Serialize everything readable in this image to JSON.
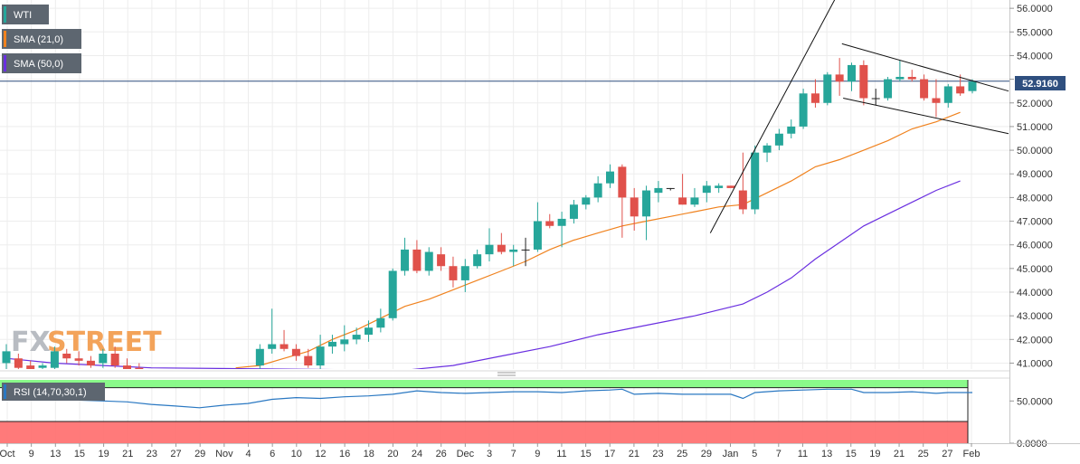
{
  "logo": {
    "part1": "FX",
    "part2": "STREET"
  },
  "colors": {
    "up": "#26a69a",
    "down": "#e0514b",
    "sma21": "#f0821e",
    "sma50": "#6a2fe0",
    "rsi": "#2a78c2",
    "rsi_overbought_zone": "#7dfa7d",
    "rsi_oversold_zone": "#ff6b6b",
    "price_line": "#2f4f7f"
  },
  "chart_data": [
    {
      "type": "candlestick",
      "legend": [
        {
          "label": "WTI",
          "color": "#26a69a"
        },
        {
          "label": "SMA (21,0)",
          "color": "#f0821e"
        },
        {
          "label": "SMA (50,0)",
          "color": "#6a2fe0"
        }
      ],
      "last_price_label": "52.9160",
      "last_price": 52.916,
      "ylim": [
        40.75,
        56.35
      ],
      "y_ticks": [
        "56.0000",
        "55.0000",
        "54.0000",
        "53.0000",
        "52.0000",
        "51.0000",
        "50.0000",
        "49.0000",
        "48.0000",
        "47.0000",
        "46.0000",
        "45.0000",
        "44.0000",
        "43.0000",
        "42.0000",
        "41.0000"
      ],
      "x_ticks": [
        "Oct",
        "9",
        "13",
        "15",
        "19",
        "21",
        "23",
        "27",
        "29",
        "Nov",
        "4",
        "6",
        "10",
        "12",
        "16",
        "18",
        "20",
        "24",
        "26",
        "Dec",
        "3",
        "7",
        "9",
        "11",
        "15",
        "17",
        "21",
        "23",
        "25",
        "29",
        "Jan",
        "5",
        "7",
        "11",
        "13",
        "15",
        "19",
        "21",
        "25",
        "27",
        "Feb"
      ],
      "candles": [
        {
          "i": 0,
          "o": 41.0,
          "h": 41.8,
          "l": 40.6,
          "c": 41.5
        },
        {
          "i": 1,
          "o": 41.2,
          "h": 41.4,
          "l": 40.5,
          "c": 40.8
        },
        {
          "i": 2,
          "o": 40.9,
          "h": 41.1,
          "l": 40.4,
          "c": 40.7
        },
        {
          "i": 3,
          "o": 40.8,
          "h": 41.0,
          "l": 40.5,
          "c": 40.9
        },
        {
          "i": 4,
          "o": 40.8,
          "h": 41.7,
          "l": 40.5,
          "c": 41.5
        },
        {
          "i": 5,
          "o": 41.4,
          "h": 41.6,
          "l": 41.0,
          "c": 41.2
        },
        {
          "i": 6,
          "o": 41.2,
          "h": 41.5,
          "l": 40.9,
          "c": 41.1
        },
        {
          "i": 7,
          "o": 41.1,
          "h": 41.3,
          "l": 40.8,
          "c": 40.9
        },
        {
          "i": 8,
          "o": 41.0,
          "h": 41.6,
          "l": 40.8,
          "c": 41.4
        },
        {
          "i": 9,
          "o": 41.4,
          "h": 41.7,
          "l": 40.8,
          "c": 40.9
        },
        {
          "i": 10,
          "o": 40.9,
          "h": 41.2,
          "l": 40.5,
          "c": 40.7
        },
        {
          "i": 11,
          "o": 40.8,
          "h": 41.0,
          "l": 40.4,
          "c": 40.6
        },
        {
          "i": 21,
          "o": 40.9,
          "h": 41.8,
          "l": 40.5,
          "c": 41.6
        },
        {
          "i": 22,
          "o": 41.6,
          "h": 43.3,
          "l": 41.4,
          "c": 41.8
        },
        {
          "i": 23,
          "o": 41.8,
          "h": 42.4,
          "l": 41.5,
          "c": 41.6
        },
        {
          "i": 24,
          "o": 41.6,
          "h": 41.8,
          "l": 41.1,
          "c": 41.3
        },
        {
          "i": 25,
          "o": 41.3,
          "h": 41.6,
          "l": 40.8,
          "c": 40.9
        },
        {
          "i": 26,
          "o": 40.9,
          "h": 42.2,
          "l": 40.7,
          "c": 41.7
        },
        {
          "i": 27,
          "o": 41.7,
          "h": 42.2,
          "l": 41.4,
          "c": 41.9
        },
        {
          "i": 28,
          "o": 41.8,
          "h": 42.6,
          "l": 41.5,
          "c": 42.0
        },
        {
          "i": 29,
          "o": 42.0,
          "h": 42.5,
          "l": 41.8,
          "c": 42.2
        },
        {
          "i": 30,
          "o": 42.2,
          "h": 42.8,
          "l": 41.9,
          "c": 42.5
        },
        {
          "i": 31,
          "o": 42.5,
          "h": 43.3,
          "l": 42.3,
          "c": 42.9
        },
        {
          "i": 32,
          "o": 42.9,
          "h": 45.0,
          "l": 42.8,
          "c": 44.9
        },
        {
          "i": 33,
          "o": 44.9,
          "h": 46.3,
          "l": 44.7,
          "c": 45.8
        },
        {
          "i": 34,
          "o": 45.8,
          "h": 46.2,
          "l": 44.8,
          "c": 44.9
        },
        {
          "i": 35,
          "o": 44.9,
          "h": 45.9,
          "l": 44.7,
          "c": 45.7
        },
        {
          "i": 36,
          "o": 45.6,
          "h": 45.9,
          "l": 44.9,
          "c": 45.1
        },
        {
          "i": 37,
          "o": 45.1,
          "h": 45.5,
          "l": 44.2,
          "c": 44.5
        },
        {
          "i": 38,
          "o": 44.5,
          "h": 45.4,
          "l": 44.0,
          "c": 45.1
        },
        {
          "i": 39,
          "o": 45.1,
          "h": 45.8,
          "l": 45.0,
          "c": 45.6
        },
        {
          "i": 40,
          "o": 45.6,
          "h": 46.7,
          "l": 45.3,
          "c": 46.0
        },
        {
          "i": 41,
          "o": 46.0,
          "h": 46.5,
          "l": 45.6,
          "c": 45.7
        },
        {
          "i": 42,
          "o": 45.7,
          "h": 46.0,
          "l": 45.1,
          "c": 45.8
        },
        {
          "i": 43,
          "o": 45.8,
          "h": 46.3,
          "l": 45.1,
          "c": 45.8
        },
        {
          "i": 44,
          "o": 45.8,
          "h": 47.8,
          "l": 45.7,
          "c": 47.0
        },
        {
          "i": 45,
          "o": 47.0,
          "h": 47.3,
          "l": 46.7,
          "c": 46.8
        },
        {
          "i": 46,
          "o": 46.8,
          "h": 47.4,
          "l": 45.9,
          "c": 47.1
        },
        {
          "i": 47,
          "o": 47.1,
          "h": 47.9,
          "l": 46.9,
          "c": 47.7
        },
        {
          "i": 48,
          "o": 47.7,
          "h": 48.1,
          "l": 47.5,
          "c": 48.0
        },
        {
          "i": 49,
          "o": 48.0,
          "h": 48.9,
          "l": 47.8,
          "c": 48.6
        },
        {
          "i": 50,
          "o": 48.6,
          "h": 49.4,
          "l": 48.4,
          "c": 49.1
        },
        {
          "i": 51,
          "o": 49.3,
          "h": 49.4,
          "l": 46.3,
          "c": 48.0
        },
        {
          "i": 52,
          "o": 48.0,
          "h": 48.4,
          "l": 46.6,
          "c": 47.2
        },
        {
          "i": 53,
          "o": 47.2,
          "h": 48.5,
          "l": 46.2,
          "c": 48.3
        },
        {
          "i": 54,
          "o": 48.2,
          "h": 48.7,
          "l": 47.8,
          "c": 48.4
        },
        {
          "i": 55,
          "o": 48.4,
          "h": 48.4,
          "l": 48.3,
          "c": 48.4
        },
        {
          "i": 56,
          "o": 48.0,
          "h": 49.0,
          "l": 47.7,
          "c": 47.7
        },
        {
          "i": 57,
          "o": 47.7,
          "h": 48.4,
          "l": 47.6,
          "c": 48.0
        },
        {
          "i": 58,
          "o": 48.2,
          "h": 48.7,
          "l": 47.8,
          "c": 48.5
        },
        {
          "i": 59,
          "o": 48.4,
          "h": 48.6,
          "l": 48.2,
          "c": 48.5
        },
        {
          "i": 60,
          "o": 48.5,
          "h": 48.5,
          "l": 48.4,
          "c": 48.4
        },
        {
          "i": 61,
          "o": 48.3,
          "h": 49.9,
          "l": 47.3,
          "c": 47.5
        },
        {
          "i": 62,
          "o": 47.5,
          "h": 50.2,
          "l": 47.3,
          "c": 49.9
        },
        {
          "i": 63,
          "o": 49.9,
          "h": 50.3,
          "l": 49.5,
          "c": 50.2
        },
        {
          "i": 64,
          "o": 50.2,
          "h": 50.9,
          "l": 50.0,
          "c": 50.7
        },
        {
          "i": 65,
          "o": 50.7,
          "h": 51.3,
          "l": 50.5,
          "c": 51.0
        },
        {
          "i": 66,
          "o": 51.0,
          "h": 52.6,
          "l": 50.9,
          "c": 52.4
        },
        {
          "i": 67,
          "o": 52.4,
          "h": 53.0,
          "l": 51.8,
          "c": 52.0
        },
        {
          "i": 68,
          "o": 52.0,
          "h": 53.3,
          "l": 51.9,
          "c": 53.2
        },
        {
          "i": 69,
          "o": 53.2,
          "h": 53.9,
          "l": 52.3,
          "c": 52.9
        },
        {
          "i": 70,
          "o": 52.9,
          "h": 53.7,
          "l": 52.5,
          "c": 53.6
        },
        {
          "i": 71,
          "o": 53.6,
          "h": 53.8,
          "l": 51.9,
          "c": 52.2
        },
        {
          "i": 72,
          "o": 52.2,
          "h": 52.6,
          "l": 51.9,
          "c": 52.2
        },
        {
          "i": 73,
          "o": 52.2,
          "h": 53.1,
          "l": 52.1,
          "c": 53.0
        },
        {
          "i": 74,
          "o": 53.0,
          "h": 53.8,
          "l": 52.9,
          "c": 53.1
        },
        {
          "i": 75,
          "o": 53.1,
          "h": 53.4,
          "l": 52.9,
          "c": 53.0
        },
        {
          "i": 76,
          "o": 53.0,
          "h": 53.2,
          "l": 52.1,
          "c": 52.2
        },
        {
          "i": 77,
          "o": 52.2,
          "h": 53.0,
          "l": 51.4,
          "c": 52.0
        },
        {
          "i": 78,
          "o": 52.0,
          "h": 52.8,
          "l": 51.8,
          "c": 52.7
        },
        {
          "i": 79,
          "o": 52.7,
          "h": 53.2,
          "l": 52.3,
          "c": 52.4
        },
        {
          "i": 80,
          "o": 52.5,
          "h": 53.0,
          "l": 52.4,
          "c": 52.9
        }
      ],
      "sma21": [
        [
          19,
          40.8
        ],
        [
          21,
          40.9
        ],
        [
          23,
          41.2
        ],
        [
          25,
          41.5
        ],
        [
          27,
          42.0
        ],
        [
          29,
          42.4
        ],
        [
          31,
          42.9
        ],
        [
          33,
          43.4
        ],
        [
          35,
          43.7
        ],
        [
          37,
          44.1
        ],
        [
          39,
          44.5
        ],
        [
          41,
          44.9
        ],
        [
          43,
          45.3
        ],
        [
          45,
          45.8
        ],
        [
          47,
          46.2
        ],
        [
          49,
          46.5
        ],
        [
          51,
          46.8
        ],
        [
          53,
          47.0
        ],
        [
          55,
          47.2
        ],
        [
          57,
          47.4
        ],
        [
          59,
          47.6
        ],
        [
          61,
          47.7
        ],
        [
          63,
          48.2
        ],
        [
          65,
          48.7
        ],
        [
          67,
          49.3
        ],
        [
          69,
          49.6
        ],
        [
          71,
          50.0
        ],
        [
          73,
          50.4
        ],
        [
          75,
          50.9
        ],
        [
          77,
          51.2
        ],
        [
          79,
          51.6
        ]
      ],
      "sma50": [
        [
          0,
          41.2
        ],
        [
          4,
          41.0
        ],
        [
          8,
          40.9
        ],
        [
          12,
          40.8
        ],
        [
          33,
          40.7
        ],
        [
          37,
          40.9
        ],
        [
          41,
          41.3
        ],
        [
          45,
          41.7
        ],
        [
          49,
          42.2
        ],
        [
          53,
          42.6
        ],
        [
          57,
          43.0
        ],
        [
          61,
          43.5
        ],
        [
          63,
          44.0
        ],
        [
          65,
          44.6
        ],
        [
          67,
          45.4
        ],
        [
          69,
          46.1
        ],
        [
          71,
          46.8
        ],
        [
          73,
          47.3
        ],
        [
          75,
          47.8
        ],
        [
          77,
          48.3
        ],
        [
          79,
          48.7
        ]
      ],
      "trendlines": [
        {
          "x1": 58.3,
          "y1": 46.5,
          "x2": 70.1,
          "y2": 57.8
        },
        {
          "x1": 69.2,
          "y1": 54.5,
          "x2": 83.0,
          "y2": 52.5
        },
        {
          "x1": 69.3,
          "y1": 52.2,
          "x2": 83.0,
          "y2": 50.7
        }
      ]
    },
    {
      "type": "line",
      "legend": [
        {
          "label": "RSI (14,70,30,1)",
          "color": "#2a78c2"
        }
      ],
      "ylim": [
        0,
        75
      ],
      "y_ticks": [
        "50.0000",
        "0.0000"
      ],
      "overbought": 70,
      "oversold": 30,
      "values": [
        [
          0,
          52
        ],
        [
          2,
          53
        ],
        [
          4,
          52
        ],
        [
          6,
          51
        ],
        [
          8,
          50
        ],
        [
          10,
          49
        ],
        [
          12,
          46
        ],
        [
          14,
          44
        ],
        [
          16,
          42
        ],
        [
          18,
          45
        ],
        [
          20,
          47
        ],
        [
          22,
          52
        ],
        [
          24,
          54
        ],
        [
          26,
          53
        ],
        [
          28,
          55
        ],
        [
          30,
          56
        ],
        [
          32,
          58
        ],
        [
          34,
          62
        ],
        [
          36,
          60
        ],
        [
          38,
          59
        ],
        [
          40,
          60
        ],
        [
          42,
          61
        ],
        [
          44,
          61
        ],
        [
          46,
          60
        ],
        [
          48,
          62
        ],
        [
          50,
          63
        ],
        [
          51,
          64
        ],
        [
          52,
          58
        ],
        [
          54,
          59
        ],
        [
          56,
          58
        ],
        [
          58,
          58
        ],
        [
          60,
          58
        ],
        [
          61,
          53
        ],
        [
          62,
          60
        ],
        [
          64,
          62
        ],
        [
          66,
          63
        ],
        [
          68,
          64
        ],
        [
          70,
          64
        ],
        [
          71,
          60
        ],
        [
          73,
          60
        ],
        [
          75,
          61
        ],
        [
          77,
          59
        ],
        [
          78,
          60
        ],
        [
          80,
          60
        ]
      ]
    }
  ]
}
